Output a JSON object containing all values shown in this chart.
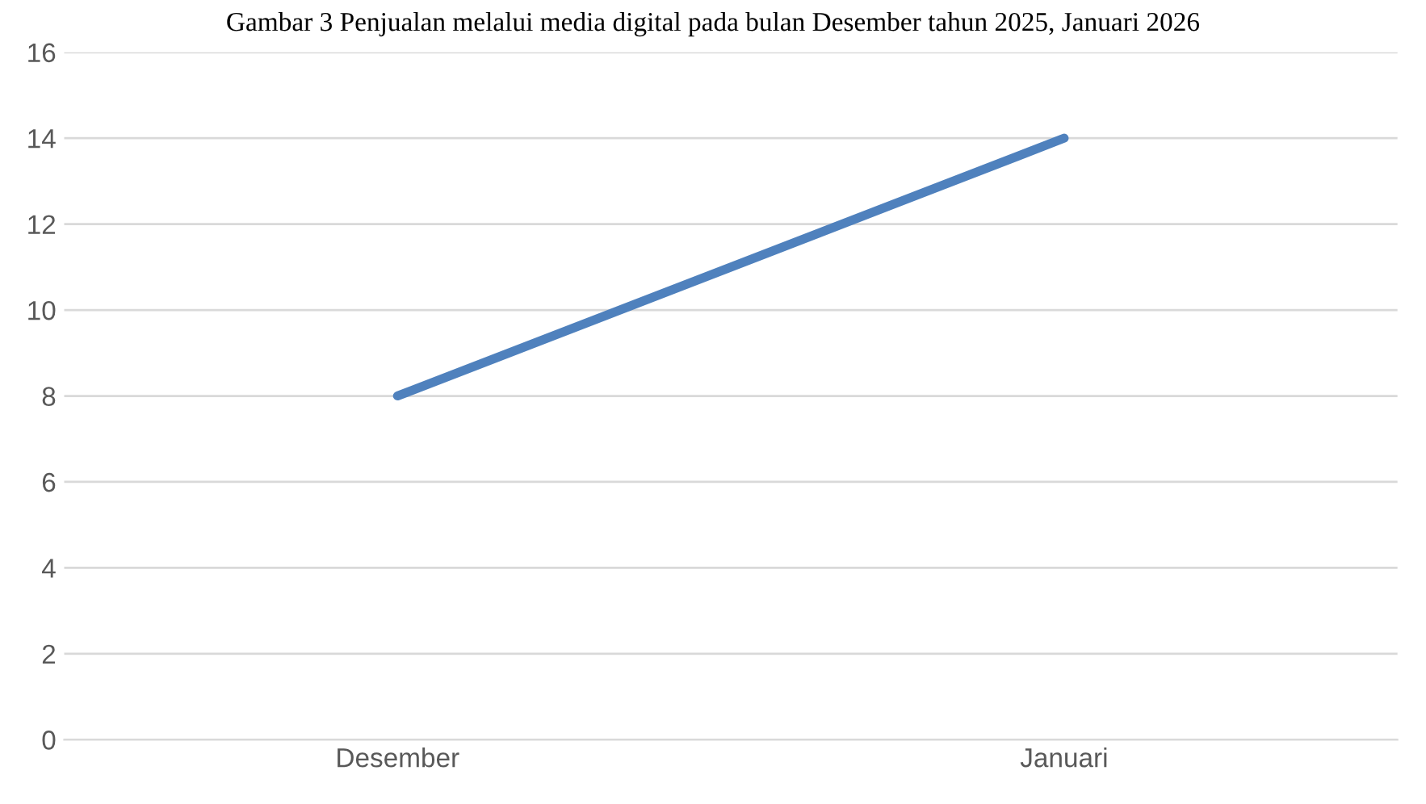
{
  "chart_data": {
    "type": "line",
    "title": "Gambar 3 Penjualan melalui media digital pada bulan Desember tahun 2025, Januari 2026",
    "categories": [
      "Desember",
      "Januari"
    ],
    "series": [
      {
        "color": "#4f81bd",
        "values": [
          8,
          14
        ]
      }
    ],
    "ylim": [
      0,
      16
    ],
    "yticks": [
      0,
      2,
      4,
      6,
      8,
      10,
      12,
      14,
      16
    ],
    "grid": "y",
    "legend": false,
    "marker": "none"
  }
}
